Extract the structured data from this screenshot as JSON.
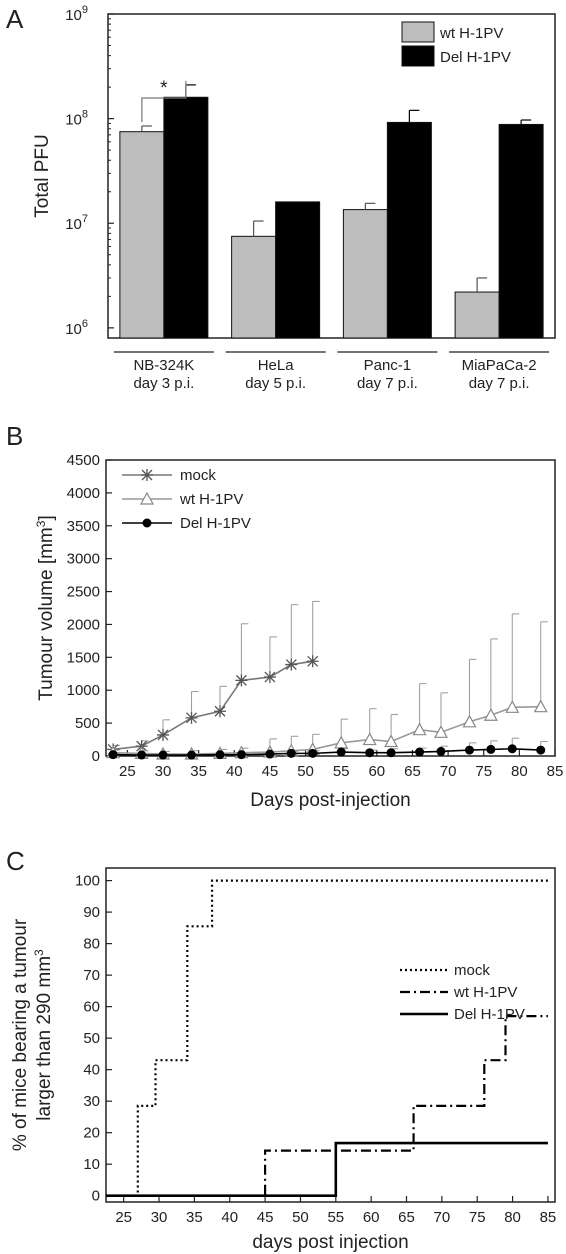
{
  "chart_data": [
    {
      "panel": "A",
      "type": "bar",
      "scale": "log",
      "ylabel": "Total PFU",
      "ylim": [
        800000,
        1000000000
      ],
      "yticks": [
        {
          "value": 1000000,
          "base": "10",
          "exp": "6"
        },
        {
          "value": 10000000,
          "base": "10",
          "exp": "7"
        },
        {
          "value": 100000000,
          "base": "10",
          "exp": "8"
        },
        {
          "value": 1000000000,
          "base": "10",
          "exp": "9"
        }
      ],
      "categories": [
        {
          "line1": "NB-324K",
          "line2": "day 3 p.i."
        },
        {
          "line1": "HeLa",
          "line2": "day 5 p.i."
        },
        {
          "line1": "Panc-1",
          "line2": "day 7 p.i."
        },
        {
          "line1": "MiaPaCa-2",
          "line2": "day 7 p.i."
        }
      ],
      "series": [
        {
          "name": "wt H-1PV",
          "color": "#bdbdbd",
          "values": [
            75000000,
            7500000,
            13500000,
            2200000
          ],
          "errors": [
            85000000,
            10500000,
            15500000,
            3000000
          ]
        },
        {
          "name": "Del H-1PV",
          "color": "#000000",
          "values": [
            160000000,
            16000000,
            92000000,
            88000000
          ],
          "errors": [
            210000000,
            16000000,
            120000000,
            97000000
          ]
        }
      ],
      "annotation": "*",
      "legend_position": "top-right"
    },
    {
      "panel": "B",
      "type": "line",
      "xlabel": "Days post-injection",
      "ylabel": "Tumour volume [mm",
      "ylabel_sup": "3",
      "ylabel_end": "]",
      "xlim": [
        22,
        85
      ],
      "ylim": [
        0,
        4500
      ],
      "xticks": [
        25,
        30,
        35,
        40,
        45,
        50,
        55,
        60,
        65,
        70,
        75,
        80,
        85
      ],
      "yticks": [
        0,
        500,
        1000,
        1500,
        2000,
        2500,
        3000,
        3500,
        4000,
        4500
      ],
      "series": [
        {
          "name": "mock",
          "marker": "star",
          "color": "#777777",
          "x": [
            23,
            27,
            30,
            34,
            38,
            41,
            45,
            48,
            51
          ],
          "y": [
            100,
            150,
            320,
            580,
            680,
            1150,
            1200,
            1390,
            1440
          ],
          "err": [
            160,
            230,
            550,
            980,
            1060,
            2010,
            1810,
            2300,
            2350
          ]
        },
        {
          "name": "wt H-1PV",
          "marker": "triangle",
          "color": "#999999",
          "x": [
            23,
            27,
            30,
            34,
            38,
            41,
            45,
            48,
            51,
            55,
            59,
            62,
            66,
            69,
            73,
            76,
            79,
            83
          ],
          "y": [
            50,
            40,
            30,
            30,
            40,
            50,
            60,
            80,
            100,
            200,
            250,
            220,
            400,
            360,
            520,
            620,
            740,
            750
          ],
          "err": [
            90,
            80,
            70,
            80,
            100,
            120,
            260,
            300,
            330,
            560,
            720,
            630,
            1100,
            960,
            1470,
            1780,
            2160,
            2040
          ]
        },
        {
          "name": "Del H-1PV",
          "marker": "circle",
          "color": "#000000",
          "x": [
            23,
            27,
            30,
            34,
            38,
            41,
            45,
            48,
            51,
            55,
            59,
            62,
            66,
            69,
            73,
            76,
            79,
            83
          ],
          "y": [
            20,
            15,
            15,
            15,
            20,
            20,
            30,
            40,
            40,
            60,
            50,
            50,
            60,
            70,
            90,
            100,
            110,
            90
          ],
          "err": [
            40,
            30,
            30,
            30,
            40,
            40,
            60,
            70,
            80,
            110,
            90,
            110,
            120,
            150,
            200,
            230,
            270,
            220
          ]
        }
      ],
      "legend_position": "top-left"
    },
    {
      "panel": "C",
      "type": "line",
      "step": true,
      "xlabel": "days post injection",
      "ylabel_line1": "% of mice bearing a tumour",
      "ylabel_line2": "larger than 290 mm",
      "ylabel_sup": "3",
      "xlim": [
        22.5,
        86
      ],
      "ylim": [
        -2,
        104
      ],
      "xticks": [
        25,
        30,
        35,
        40,
        45,
        50,
        55,
        60,
        65,
        70,
        75,
        80,
        85
      ],
      "yticks": [
        0,
        10,
        20,
        30,
        40,
        50,
        60,
        70,
        80,
        90,
        100
      ],
      "series": [
        {
          "name": "mock",
          "dash": "2,3",
          "width": 2.2,
          "color": "#000000",
          "x": [
            22.5,
            27,
            27,
            29.5,
            29.5,
            34,
            34,
            37.5,
            37.5,
            85
          ],
          "y": [
            0,
            0,
            28.5,
            28.5,
            43,
            43,
            85.5,
            85.5,
            100,
            100
          ]
        },
        {
          "name": "wt H-1PV",
          "dash": "10,4,2,4",
          "width": 2.2,
          "color": "#000000",
          "x": [
            22.5,
            45,
            45,
            66,
            66,
            76,
            76,
            79,
            79,
            85
          ],
          "y": [
            0,
            0,
            14.3,
            14.3,
            28.5,
            28.5,
            43,
            43,
            57,
            57
          ]
        },
        {
          "name": "Del H-1PV",
          "dash": "",
          "width": 2.6,
          "color": "#000000",
          "x": [
            22.5,
            55,
            55,
            85
          ],
          "y": [
            0,
            0,
            16.7,
            16.7
          ]
        }
      ],
      "legend_position": "right"
    }
  ]
}
